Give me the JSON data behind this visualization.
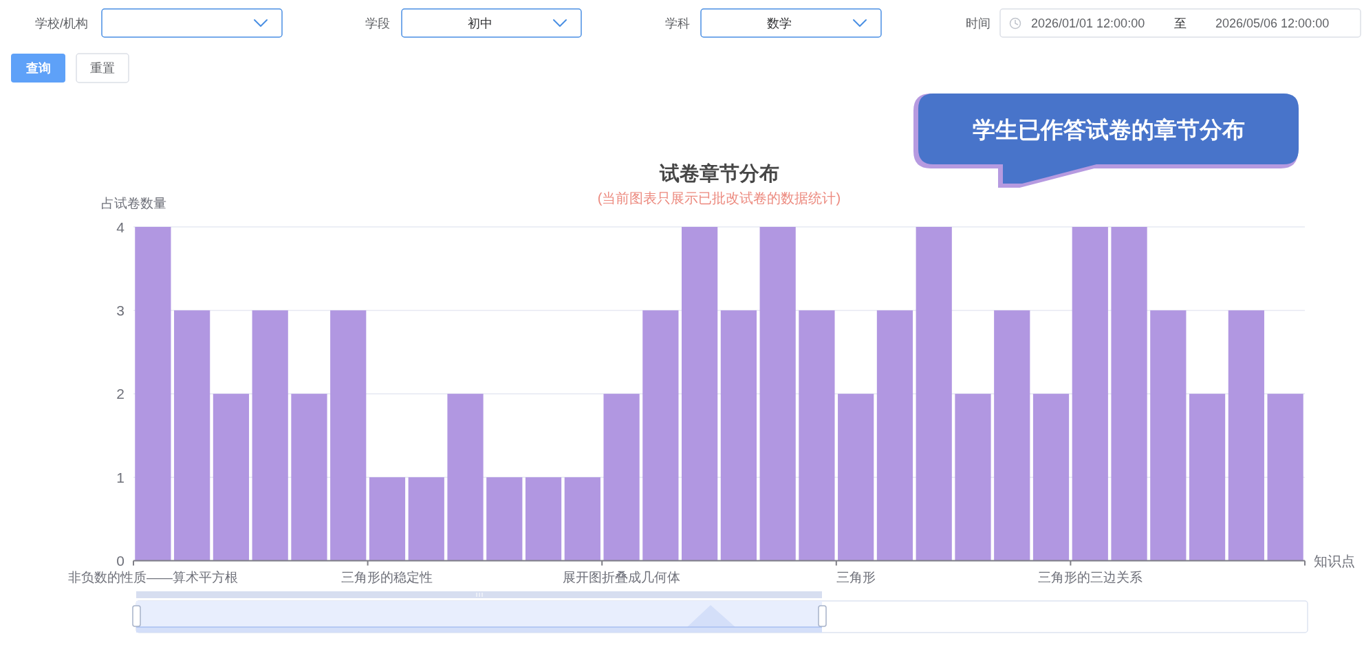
{
  "chart_data": {
    "type": "bar",
    "title": "试卷章节分布",
    "subtitle": "(当前图表只展示已批改试卷的数据统计)",
    "xlabel": "知识点",
    "ylabel": "占试卷数量",
    "categories": [
      "非负数的性质——算术平方根",
      null,
      null,
      null,
      null,
      null,
      "三角形的稳定性",
      null,
      null,
      null,
      null,
      null,
      "展开图折叠成几何体",
      null,
      null,
      null,
      null,
      null,
      "三角形",
      null,
      null,
      null,
      null,
      null,
      "三角形的三边关系",
      null,
      null,
      null,
      null,
      null
    ],
    "series": [
      {
        "color": "#b197e1",
        "values": [
          4,
          3,
          2,
          3,
          2,
          3,
          1,
          1,
          2,
          1,
          1,
          1,
          2,
          3,
          4,
          3,
          4,
          3,
          2,
          3,
          4,
          2,
          3,
          2,
          4,
          4,
          3,
          2,
          3,
          2
        ]
      }
    ],
    "ylim": [
      0,
      4
    ],
    "yticks": [
      0,
      1,
      2,
      3,
      4
    ],
    "grid": "y",
    "annotations": [
      "学校/机构",
      "学段",
      "初中",
      "学科",
      "数学",
      "时间",
      "2026/01/01 12:00:00",
      "至",
      "2026/05/06 12:00:00",
      "查询",
      "重置",
      "学生已作答试卷的章节分布"
    ]
  }
}
